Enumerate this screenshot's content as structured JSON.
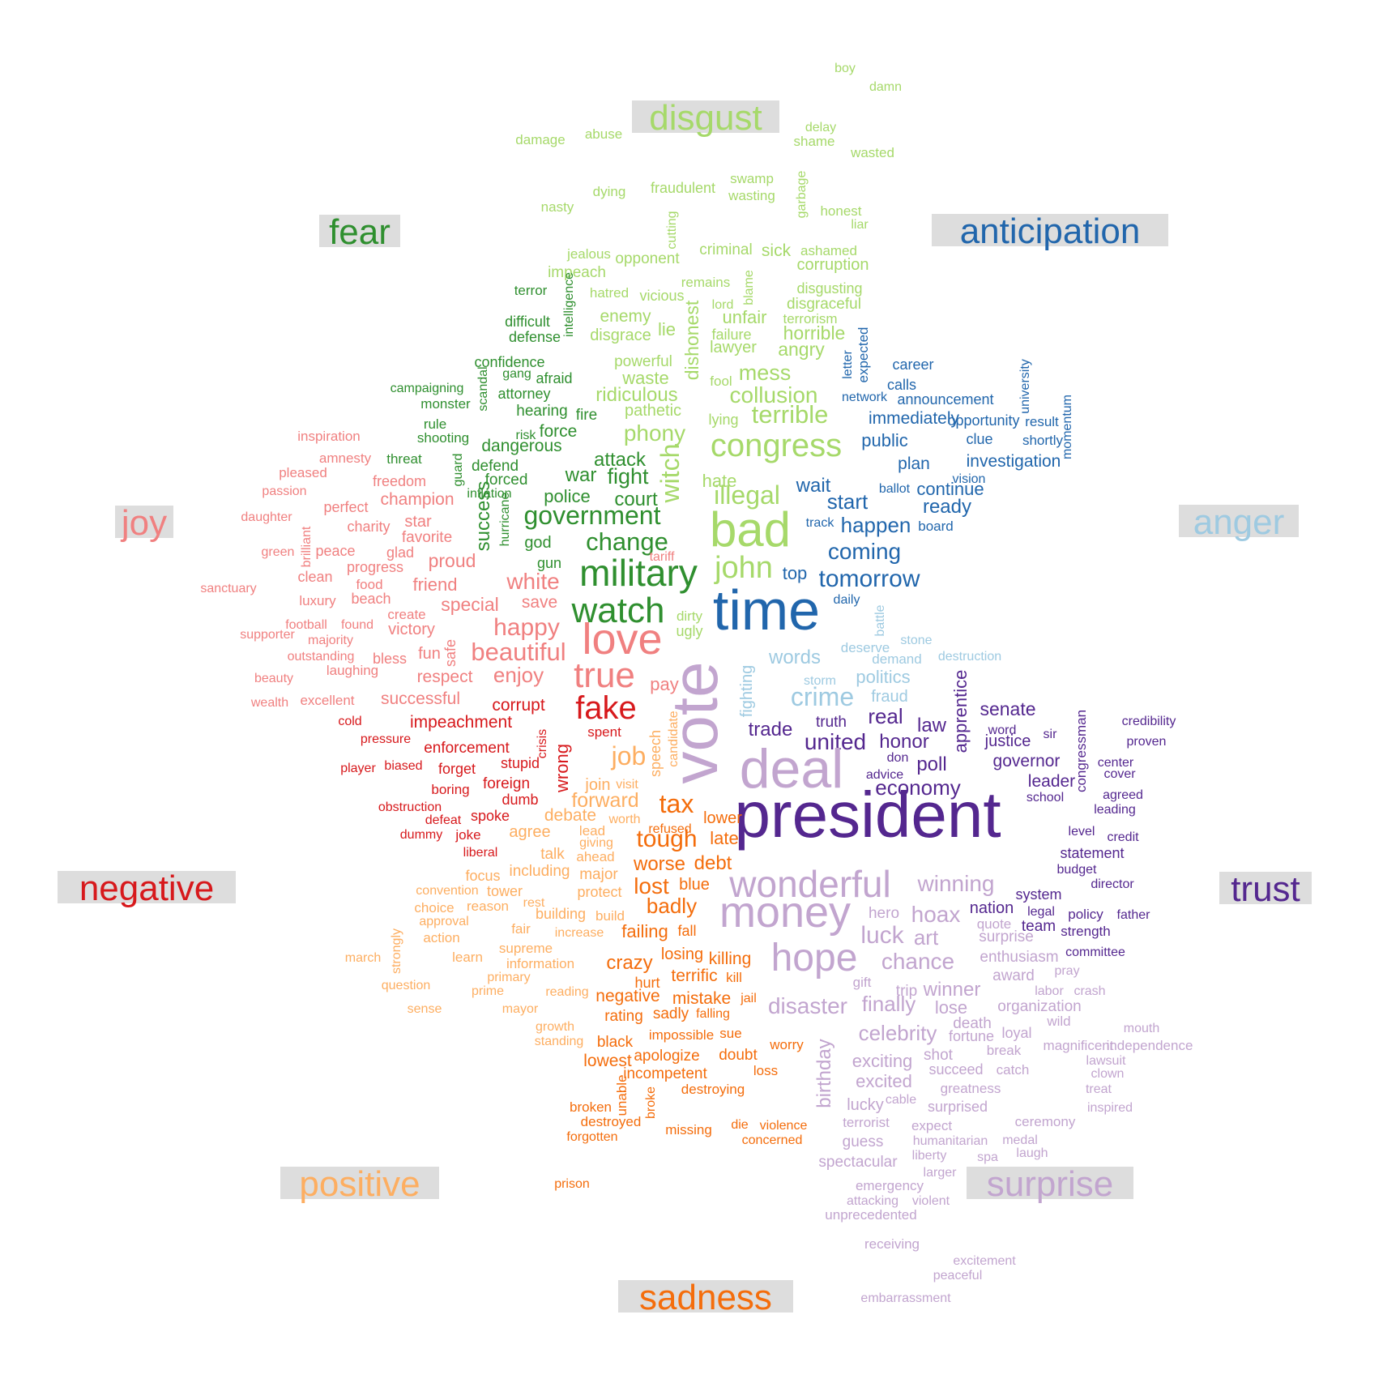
{
  "categories": [
    {
      "key": "disgust",
      "label": "disgust",
      "color": "#a6d96a"
    },
    {
      "key": "fear",
      "label": "fear",
      "color": "#2f8f2f"
    },
    {
      "key": "anticipation",
      "label": "anticipation",
      "color": "#2166ac"
    },
    {
      "key": "joy",
      "label": "joy",
      "color": "#f08080"
    },
    {
      "key": "anger",
      "label": "anger",
      "color": "#9ecae1"
    },
    {
      "key": "negative",
      "label": "negative",
      "color": "#d7191c"
    },
    {
      "key": "trust",
      "label": "trust",
      "color": "#54278f"
    },
    {
      "key": "positive",
      "label": "positive",
      "color": "#fdae61"
    },
    {
      "key": "surprise",
      "label": "surprise",
      "color": "#c2a5cf"
    },
    {
      "key": "sadness",
      "label": "sadness",
      "color": "#f46d0c"
    }
  ],
  "words": {
    "disgust": [
      "boy",
      "damn",
      "delay",
      "shame",
      "wasted",
      "damage",
      "abuse",
      "swamp",
      "wasting",
      "fraudulent",
      "dying",
      "nasty",
      "garbage",
      "honest",
      "liar",
      "cutting",
      "criminal",
      "sick",
      "ashamed",
      "jealous",
      "opponent",
      "corruption",
      "impeach",
      "remains",
      "blame",
      "disgusting",
      "hatred",
      "vicious",
      "lord",
      "disgraceful",
      "enemy",
      "dishonest",
      "unfair",
      "terrorism",
      "lie",
      "failure",
      "horrible",
      "disgrace",
      "lawyer",
      "angry",
      "powerful",
      "mess",
      "waste",
      "fool",
      "ridiculous",
      "collusion",
      "pathetic",
      "terrible",
      "lying",
      "phony",
      "congress",
      "witch",
      "hate",
      "illegal",
      "bad",
      "john",
      "dirty",
      "ugly"
    ],
    "fear": [
      "terror",
      "intelligence",
      "difficult",
      "defense",
      "confidence",
      "gang",
      "afraid",
      "scandal",
      "attorney",
      "campaigning",
      "monster",
      "hearing",
      "fire",
      "rule",
      "risk",
      "force",
      "shooting",
      "dangerous",
      "threat",
      "guard",
      "defend",
      "attack",
      "forced",
      "inflation",
      "war",
      "fight",
      "police",
      "court",
      "success",
      "hurricane",
      "government",
      "god",
      "change",
      "gun",
      "military",
      "watch"
    ],
    "anticipation": [
      "expected",
      "letter",
      "university",
      "career",
      "calls",
      "network",
      "announcement",
      "momentum",
      "immediately",
      "opportunity",
      "result",
      "clue",
      "shortly",
      "public",
      "investigation",
      "plan",
      "vision",
      "ballot",
      "continue",
      "wait",
      "start",
      "ready",
      "track",
      "happen",
      "board",
      "coming",
      "top",
      "tomorrow",
      "daily",
      "time"
    ],
    "joy": [
      "inspiration",
      "amnesty",
      "pleased",
      "passion",
      "freedom",
      "perfect",
      "champion",
      "daughter",
      "charity",
      "star",
      "brilliant",
      "favorite",
      "green",
      "peace",
      "glad",
      "progress",
      "proud",
      "clean",
      "food",
      "friend",
      "sanctuary",
      "luxury",
      "beach",
      "white",
      "create",
      "special",
      "save",
      "football",
      "found",
      "supporter",
      "majority",
      "victory",
      "happy",
      "safe",
      "outstanding",
      "fun",
      "beautiful",
      "bless",
      "laughing",
      "beauty",
      "respect",
      "enjoy",
      "wealth",
      "excellent",
      "successful",
      "love",
      "true",
      "tariff",
      "pay"
    ],
    "anger": [
      "anger",
      "battle",
      "stone",
      "deserve",
      "destruction",
      "demand",
      "words",
      "storm",
      "politics",
      "fighting",
      "fraud",
      "crime"
    ],
    "negative": [
      "corrupt",
      "cold",
      "impeachment",
      "pressure",
      "crisis",
      "enforcement",
      "player",
      "biased",
      "forget",
      "stupid",
      "wrong",
      "spent",
      "boring",
      "foreign",
      "dumb",
      "obstruction",
      "spoke",
      "defeat",
      "dummy",
      "joke",
      "liberal",
      "fake"
    ],
    "trust": [
      "credibility",
      "proven",
      "center",
      "cover",
      "agreed",
      "leading",
      "level",
      "credit",
      "statement",
      "budget",
      "director",
      "system",
      "policy",
      "father",
      "nation",
      "legal",
      "team",
      "strength",
      "committee",
      "senate",
      "word",
      "sir",
      "justice",
      "apprentice",
      "trade",
      "truth",
      "united",
      "honor",
      "real",
      "law",
      "don",
      "advice",
      "poll",
      "governor",
      "congressman",
      "economy",
      "leader",
      "school",
      "president",
      "trust"
    ],
    "positive": [
      "strongly",
      "march",
      "question",
      "sense",
      "learn",
      "convention",
      "choice",
      "approval",
      "action",
      "reason",
      "rest",
      "fair",
      "supreme",
      "information",
      "primary",
      "prime",
      "reading",
      "mayor",
      "growth",
      "standing",
      "building",
      "build",
      "increase",
      "tower",
      "focus",
      "including",
      "talk",
      "agree",
      "debate",
      "lead",
      "giving",
      "ahead",
      "major",
      "protect",
      "join",
      "visit",
      "worth",
      "forward",
      "job",
      "speech",
      "candidate"
    ],
    "surprise": [
      "winning",
      "hoax",
      "hero",
      "art",
      "quote",
      "surprise",
      "enthusiasm",
      "pray",
      "award",
      "labor",
      "crash",
      "organization",
      "wild",
      "mouth",
      "independence",
      "magnificent",
      "lawsuit",
      "clown",
      "treat",
      "inspired",
      "fortune",
      "break",
      "loyal",
      "death",
      "catch",
      "greatness",
      "succeed",
      "exciting",
      "excited",
      "surprised",
      "cable",
      "expect",
      "humanitarian",
      "medal",
      "laugh",
      "ceremony",
      "liberty",
      "spa",
      "larger",
      "violent",
      "attacking",
      "emergency",
      "unprecedented",
      "receiving",
      "excitement",
      "peaceful",
      "embarrassment",
      "vote",
      "deal",
      "money",
      "wonderful",
      "hope",
      "luck",
      "chance",
      "gift",
      "trip",
      "winner",
      "lose",
      "disaster",
      "finally",
      "birthday",
      "celebrity",
      "shot",
      "lucky",
      "terrorist",
      "guess",
      "spectacular"
    ],
    "sadness": [
      "tax",
      "tough",
      "lower",
      "late",
      "worse",
      "debt",
      "lost",
      "blue",
      "badly",
      "failing",
      "fall",
      "crazy",
      "losing",
      "killing",
      "hurt",
      "terrific",
      "kill",
      "negative",
      "mistake",
      "jail",
      "rating",
      "sadly",
      "falling",
      "impossible",
      "sue",
      "black",
      "worry",
      "lowest",
      "apologize",
      "doubt",
      "loss",
      "incompetent",
      "destroying",
      "unable",
      "broke",
      "broken",
      "destroyed",
      "missing",
      "die",
      "violence",
      "forgotten",
      "concerned",
      "prison",
      "refused"
    ]
  }
}
